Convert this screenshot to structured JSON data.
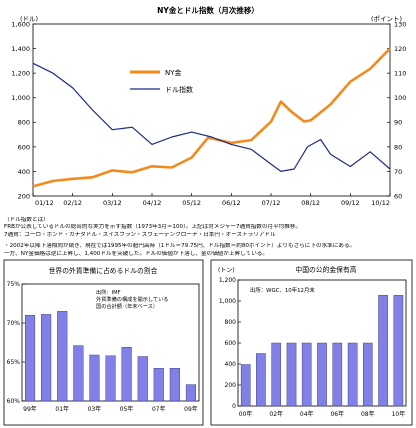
{
  "main_chart": {
    "title": "NY金とドル指数（月次推移）",
    "left_unit": "(ドル)",
    "right_unit": "(ポイント)",
    "left_ticks": [
      "1,600",
      "1,400",
      "1,200",
      "1,000",
      "800",
      "600",
      "400",
      "200"
    ],
    "right_ticks": [
      "130",
      "120",
      "110",
      "100",
      "90",
      "80",
      "70",
      "60"
    ],
    "legend": {
      "gold": "NY金",
      "dollar": "ドル指数"
    },
    "colors": {
      "gold": "#f28a1e",
      "dollar": "#1d2a86"
    }
  },
  "notes": {
    "heading": "（ドル指数とは）",
    "lines": [
      "FRBが公表しているドルの総合的な実力を示す指数（1973年3月＝100）。上記は対メジャー7通貨指数の月平均推移。",
      "7通貨：ユーロ・ポンド・カナダドル・スイスフラン・スウェーデンクローナ・日本円・オーストラリアドル",
      "",
      "・2002年以降下落傾向が続き、現在では1995年の超円高時（1ドル＝79.75円、ドル指数＝約80ポイント）よりもさらに下の水準にある。",
      "一方、NY金価格は逆に上昇し、1,400ドルを突破した。ドルの価値が下落し、金の価値が上昇している。"
    ]
  },
  "chart_data": [
    {
      "type": "line",
      "title": "NY金とドル指数（月次推移）",
      "x": [
        "01/12",
        "02/12",
        "03/12",
        "04/12",
        "05/12",
        "06/12",
        "07/12",
        "08/12",
        "09/12",
        "10/12"
      ],
      "xlim": [
        "2001-12",
        "2010-12"
      ],
      "ylim_left": [
        200,
        1600
      ],
      "ylim_right": [
        60,
        130
      ],
      "grid": false,
      "legend_position": "top-left",
      "series": [
        {
          "name": "NY金",
          "axis": "left",
          "color": "#f28a1e",
          "values": [
            [
              "2001-12",
              278
            ],
            [
              "2002-06",
              322
            ],
            [
              "2002-12",
              340
            ],
            [
              "2003-06",
              352
            ],
            [
              "2003-12",
              408
            ],
            [
              "2004-06",
              393
            ],
            [
              "2004-12",
              442
            ],
            [
              "2005-06",
              432
            ],
            [
              "2005-12",
              513
            ],
            [
              "2006-05",
              675
            ],
            [
              "2006-12",
              632
            ],
            [
              "2007-06",
              655
            ],
            [
              "2007-12",
              805
            ],
            [
              "2008-03",
              968
            ],
            [
              "2008-06",
              890
            ],
            [
              "2008-10",
              806
            ],
            [
              "2008-12",
              816
            ],
            [
              "2009-06",
              945
            ],
            [
              "2009-12",
              1130
            ],
            [
              "2010-06",
              1235
            ],
            [
              "2010-12",
              1400
            ]
          ]
        },
        {
          "name": "ドル指数",
          "axis": "right",
          "color": "#1d2a86",
          "values": [
            [
              "2001-12",
              114
            ],
            [
              "2002-06",
              110
            ],
            [
              "2002-12",
              104
            ],
            [
              "2003-06",
              95
            ],
            [
              "2003-12",
              87
            ],
            [
              "2004-06",
              88
            ],
            [
              "2004-12",
              81
            ],
            [
              "2005-06",
              84
            ],
            [
              "2005-12",
              86
            ],
            [
              "2006-06",
              84
            ],
            [
              "2006-12",
              81
            ],
            [
              "2007-06",
              79
            ],
            [
              "2007-12",
              73
            ],
            [
              "2008-03",
              70
            ],
            [
              "2008-07",
              71
            ],
            [
              "2008-11",
              80
            ],
            [
              "2009-03",
              83
            ],
            [
              "2009-06",
              77
            ],
            [
              "2009-12",
              72
            ],
            [
              "2010-06",
              78
            ],
            [
              "2010-12",
              71
            ]
          ]
        }
      ]
    },
    {
      "type": "bar",
      "title": "世界の外貨準備に占めるドルの割合",
      "annotation": [
        "出所：IMF",
        "外貨準備の構成を開示している",
        "国の合計額（年末ベース）"
      ],
      "categories": [
        "99年",
        "00年",
        "01年",
        "02年",
        "03年",
        "04年",
        "05年",
        "06年",
        "07年",
        "08年",
        "09年"
      ],
      "x_tick_labels": [
        "99年",
        "01年",
        "03年",
        "05年",
        "07年",
        "09年"
      ],
      "y_tick_labels": [
        "75%",
        "70%",
        "65%",
        "60%"
      ],
      "values": [
        71.0,
        71.1,
        71.5,
        67.1,
        65.9,
        65.8,
        66.9,
        65.7,
        64.2,
        64.2,
        62.1
      ],
      "unit": "%",
      "ylim": [
        60,
        75
      ],
      "color": "#8080e6"
    },
    {
      "type": "bar",
      "title": "中国の公的金保有高",
      "annotation": [
        "出所：WGC、10年12月末"
      ],
      "unit_label": "(トン)",
      "categories": [
        "00年",
        "01年",
        "02年",
        "03年",
        "04年",
        "05年",
        "06年",
        "07年",
        "08年",
        "09年",
        "10年"
      ],
      "x_tick_labels": [
        "00年",
        "02年",
        "04年",
        "06年",
        "08年",
        "10年"
      ],
      "y_tick_labels": [
        "1,200",
        "1,000",
        "800",
        "600",
        "400",
        "200",
        "0"
      ],
      "values": [
        395,
        500,
        600,
        600,
        600,
        600,
        600,
        600,
        600,
        1054,
        1054
      ],
      "ylim": [
        0,
        1200
      ],
      "color": "#8080e6"
    }
  ]
}
